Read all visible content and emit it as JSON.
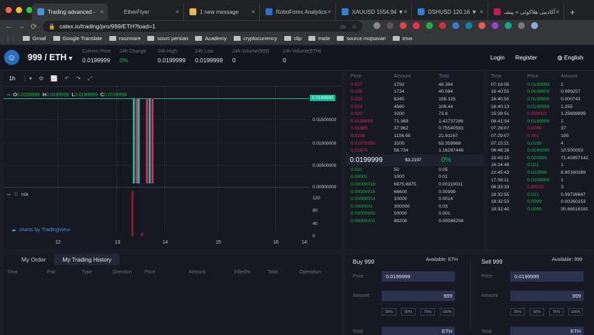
{
  "browser": {
    "tabs": [
      {
        "title": "Trading advanced - ",
        "color": "#4a90e2",
        "active": true
      },
      {
        "title": "EtherFlyer",
        "color": "#202124",
        "active": false
      },
      {
        "title": "1 new message",
        "color": "#e8b84a",
        "active": false
      },
      {
        "title": "RoboForex Analytics",
        "color": "#2d6fd1",
        "active": false
      },
      {
        "title": "XAUUSD 1554.94 ▼",
        "color": "#2b82d9",
        "active": false
      },
      {
        "title": "DSHUSD 120.16 ▼",
        "color": "#2b82d9",
        "active": false
      },
      {
        "title": "آکادمی هلاکوئی » پیشـ",
        "color": "#c2185b",
        "active": false
      }
    ],
    "new_tab": "+",
    "url": "catex.io/trading/pro/999/ETH?load=1",
    "bookmarks": [
      "Gmail",
      "Google Translate",
      "roozmare",
      "sourc persian",
      "Academy",
      "cryptocurrency",
      "clip",
      "trade",
      "source mojsavari",
      "triva"
    ]
  },
  "header": {
    "pair": "999 / ETH",
    "stats": [
      {
        "label": "Current Price",
        "value": "0.0199999",
        "color": "#e8eaed"
      },
      {
        "label": "24h Change",
        "value": "0%",
        "color": "#0fbd4a"
      },
      {
        "label": "24h High",
        "value": "0.0199999",
        "color": "#e8eaed"
      },
      {
        "label": "24h Low",
        "value": "0.0199999",
        "color": "#e8eaed"
      },
      {
        "label": "24h Volume(999)",
        "value": "0",
        "color": "#e8eaed"
      },
      {
        "label": "24h Volume(ETH)",
        "value": "0",
        "color": "#e8eaed"
      }
    ],
    "login": "Login",
    "register": "Register",
    "language": "English"
  },
  "chart": {
    "interval": "1h",
    "ohlc": {
      "o_label": "O",
      "o": "0.0199999",
      "h_label": "H",
      "h": "0.0199999",
      "l_label": "L",
      "l": "0.0199999",
      "c_label": "C",
      "c": "0.0199999"
    },
    "price_tag": "0.0199999",
    "price_axis": [
      "0.01500000",
      "0.01000000",
      "0.00500000",
      "0.00000000"
    ],
    "volume_label": "n/a",
    "volume_value": "0",
    "volume_axis": [
      "120",
      "80",
      "40",
      "0"
    ],
    "x_axis": [
      "12",
      "13",
      "14",
      "15",
      "16",
      "14:"
    ],
    "tv_link": "charts by TradingView"
  },
  "orderbook": {
    "headers": [
      "Price",
      "Amount",
      "Total"
    ],
    "asks": [
      [
        "0.027",
        "1792",
        "48.384"
      ],
      [
        "0.026",
        "1734",
        "45.084"
      ],
      [
        "0.025",
        "6245",
        "156.125"
      ],
      [
        "0.024",
        "4560",
        "109.44"
      ],
      [
        "0.023",
        "3200",
        "73.6"
      ],
      [
        "0.0199999",
        "71.369",
        "1.42737286"
      ],
      [
        "0.01989",
        "37.962",
        "0.75540583"
      ],
      [
        "0.0198",
        "1106.65",
        "21.91167"
      ],
      [
        "0.01979999",
        "3200",
        "63.359968"
      ],
      [
        "0.01979",
        "58.734",
        "1.16287446"
      ]
    ],
    "last_price": "0.0199999",
    "last_usd": "$3.2197",
    "last_change": "0%",
    "bids": [
      [
        "0.001",
        "50",
        "0.05"
      ],
      [
        "0.00001",
        "1000",
        "0.01"
      ],
      [
        "0.00000016",
        "6875.6875",
        "0.00110011"
      ],
      [
        "0.00000015",
        "66600",
        "0.00999"
      ],
      [
        "0.00000014",
        "10000",
        "0.0014"
      ],
      [
        "0.0000001",
        "300000",
        "0.03"
      ],
      [
        "0.00000002",
        "50000",
        "0.001"
      ],
      [
        "0.00000001",
        "88208",
        "0.00088208"
      ]
    ]
  },
  "trades": {
    "headers": [
      "Time",
      "Price",
      "Amount"
    ],
    "rows": [
      [
        "07:16:05",
        "0.0199999",
        "1",
        "green"
      ],
      [
        "16:40:55",
        "0.0199999",
        "0.999257",
        "green"
      ],
      [
        "16:40:55",
        "0.0199999",
        "0.000743",
        "green"
      ],
      [
        "16:40:13",
        "0.0199999",
        "1.255",
        "green"
      ],
      [
        "15:39:51",
        "0.000002",
        "1.25699999",
        "red"
      ],
      [
        "08:41:34",
        "0.0199999",
        "1",
        "green"
      ],
      [
        "07:29:07",
        "0.0099",
        "37",
        "red"
      ],
      [
        "07:29:07",
        "0.001",
        "100",
        "red"
      ],
      [
        "07:15:21",
        "0.0199",
        "4",
        "green"
      ],
      [
        "06:46:28",
        "0.0199999",
        "10.500053",
        "green"
      ],
      [
        "15:43:15",
        "0.020999",
        "71.42857142",
        "green"
      ],
      [
        "16:24:48",
        "0.021",
        "1",
        "green"
      ],
      [
        "22:45:43",
        "0.020999",
        "8.60180389",
        "green"
      ],
      [
        "17:08:11",
        "0.0209999",
        "1",
        "green"
      ],
      [
        "06:33:33",
        "0.00032",
        "3",
        "red"
      ],
      [
        "18:32:55",
        "0.021",
        "0.99739847",
        "green"
      ],
      [
        "18:32:53",
        "0.0099",
        "0.00260153",
        "green"
      ],
      [
        "18:32:40",
        "0.0099",
        "30.66516181",
        "green"
      ]
    ]
  },
  "orders": {
    "tabs": [
      "My Order",
      "My Trading History"
    ],
    "columns": [
      "Time",
      "Pair",
      "Type",
      "Direction",
      "Price",
      "Amount",
      "Filled%",
      "Total",
      "Operation"
    ]
  },
  "buy": {
    "title": "Buy 999",
    "available": "Available: ETH",
    "price_label": "Price",
    "price": "0.0199999",
    "amount_label": "Amount",
    "amount_unit": "999",
    "total_label": "Total",
    "total_unit": "ETH",
    "pcts": [
      "25%",
      "50%",
      "75%",
      "100%"
    ]
  },
  "sell": {
    "title": "Sell 999",
    "available": "Available: 999",
    "price_label": "Price",
    "price": "0.0199999",
    "amount_label": "Amount",
    "amount_unit": "999",
    "total_label": "Total",
    "total_unit": "ETH",
    "pcts": [
      "25%",
      "50%",
      "75%",
      "100%"
    ]
  }
}
